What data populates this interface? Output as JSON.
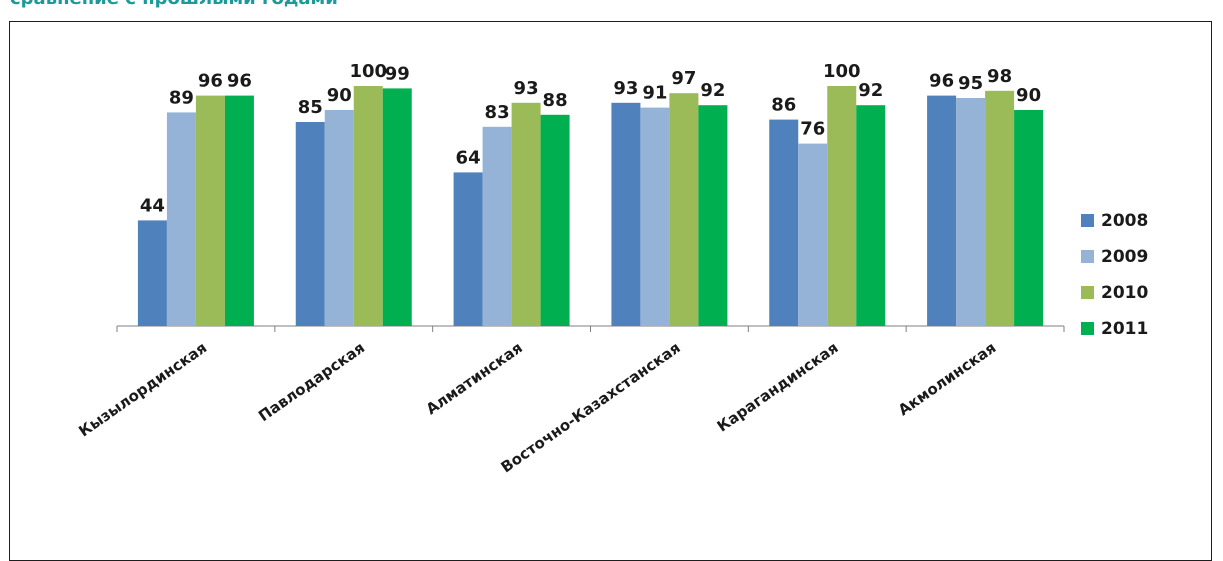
{
  "page": {
    "title": "сравнение с прошлыми годами"
  },
  "chart_data": {
    "type": "bar",
    "title": "",
    "xlabel": "",
    "ylabel": "",
    "ylim": [
      0,
      110
    ],
    "grid": false,
    "legend_position": "right",
    "categories": [
      "Кызылординская",
      "Павлодарская",
      "Алматинская",
      "Восточно-Казахстанская",
      "Карагандинская",
      "Акмолинская"
    ],
    "series": [
      {
        "name": "2008",
        "color": "#4f81bd",
        "values": [
          44,
          85,
          64,
          93,
          86,
          96
        ]
      },
      {
        "name": "2009",
        "color": "#95b3d7",
        "values": [
          89,
          90,
          83,
          91,
          76,
          95
        ]
      },
      {
        "name": "2010",
        "color": "#9bbb59",
        "values": [
          96,
          100,
          93,
          97,
          100,
          98
        ]
      },
      {
        "name": "2011",
        "color": "#00b050",
        "values": [
          96,
          99,
          88,
          92,
          92,
          90
        ]
      }
    ]
  }
}
